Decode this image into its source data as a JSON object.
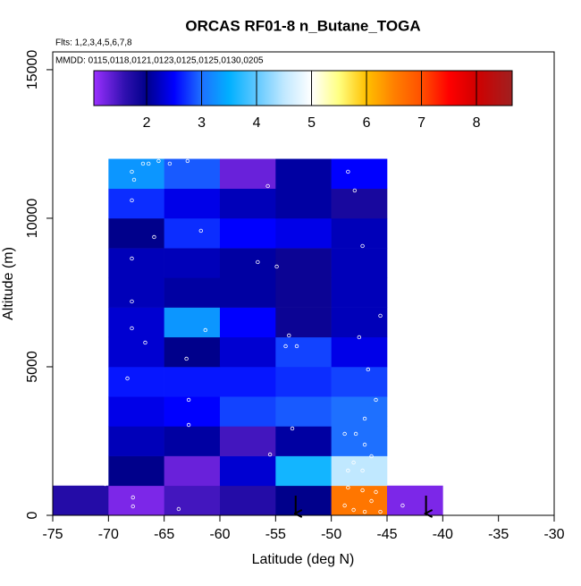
{
  "chart_data": {
    "type": "heatmap",
    "title": "ORCAS RF01-8 n_Butane_TOGA",
    "subtitle": "Flts: 1,2,3,4,5,6,7,8",
    "annotation": "MMDD: 0115,0118,0121,0123,0125,0125,0130,0205",
    "x_label": "Latitude (deg N)",
    "y_label": "Altitude (m)",
    "xlim": [
      -75,
      -30
    ],
    "xticks": [
      -75,
      -70,
      -65,
      -60,
      -55,
      -50,
      -45,
      -40,
      -35,
      -30
    ],
    "ylim": [
      0,
      15600
    ],
    "yticks": [
      0,
      5000,
      10000,
      15000
    ],
    "x_edges": [
      -75,
      -70,
      -65,
      -60,
      -55,
      -50,
      -45,
      -40
    ],
    "y_edges": [
      0,
      1000,
      2000,
      3000,
      4000,
      5000,
      6000,
      7000,
      8000,
      9000,
      10000,
      11000,
      12000
    ],
    "z": [
      [
        1.7,
        1.2,
        1.5,
        1.7,
        2.0,
        6.6,
        1.2
      ],
      [
        null,
        2.0,
        1.3,
        2.3,
        3.6,
        4.5,
        null
      ],
      [
        null,
        2.2,
        2.1,
        1.5,
        2.1,
        3.0,
        null
      ],
      [
        null,
        2.4,
        2.5,
        2.8,
        2.9,
        3.0,
        null
      ],
      [
        null,
        2.6,
        2.6,
        2.6,
        2.7,
        2.8,
        null
      ],
      [
        null,
        2.3,
        2.0,
        2.3,
        2.8,
        2.4,
        null
      ],
      [
        null,
        2.3,
        3.3,
        2.5,
        1.9,
        2.2,
        null
      ],
      [
        null,
        2.2,
        2.1,
        2.1,
        1.9,
        2.2,
        null
      ],
      [
        null,
        2.2,
        2.2,
        2.1,
        1.9,
        2.2,
        null
      ],
      [
        null,
        2.0,
        2.7,
        2.5,
        2.4,
        2.2,
        null
      ],
      [
        null,
        2.7,
        2.4,
        2.2,
        2.1,
        1.8,
        null
      ],
      [
        null,
        3.3,
        2.9,
        1.3,
        2.1,
        2.5,
        null
      ]
    ],
    "colorbar_lim": [
      1.04,
      8.65
    ],
    "colorbar_ticks": [
      2,
      3,
      4,
      5,
      6,
      7,
      8
    ],
    "colorscale": [
      [
        1.04,
        "#9b30ff"
      ],
      [
        1.6,
        "#3010b0"
      ],
      [
        2.0,
        "#00008b"
      ],
      [
        2.5,
        "#0000ff"
      ],
      [
        3.0,
        "#1e70ff"
      ],
      [
        3.5,
        "#00b0ff"
      ],
      [
        4.0,
        "#60c8ff"
      ],
      [
        4.5,
        "#c0e8ff"
      ],
      [
        5.0,
        "#ffffff"
      ],
      [
        5.5,
        "#ffff80"
      ],
      [
        6.0,
        "#ffc000"
      ],
      [
        6.5,
        "#ff8000"
      ],
      [
        7.0,
        "#ff5000"
      ],
      [
        7.5,
        "#ff0000"
      ],
      [
        8.0,
        "#d00000"
      ],
      [
        8.65,
        "#a02020"
      ]
    ],
    "points": {
      "lat": [
        -66.9,
        -66.4,
        -65.5,
        -64.5,
        -62.9,
        -67.9,
        -67.7,
        -67.9,
        -65.9,
        -67.9,
        -67.9,
        -67.9,
        -66.7,
        -68.3,
        -67.8,
        -67.8,
        -63.7,
        -62.8,
        -62.8,
        -61.3,
        -63.0,
        -61.7,
        -56.6,
        -54.9,
        -55.7,
        -53.8,
        -53.1,
        -54.1,
        -53.5,
        -55.5,
        -48.5,
        -47.9,
        -47.2,
        -45.6,
        -47.5,
        -46.7,
        -46.0,
        -47.0,
        -48.8,
        -47.8,
        -47.0,
        -48.0,
        -46.4,
        -48.5,
        -47.2,
        -48.5,
        -47.2,
        -46.0,
        -48.8,
        -48.0,
        -47.0,
        -45.6,
        -46.4,
        -43.6,
        -70.3
      ],
      "alt": [
        11837,
        11837,
        11928,
        11837,
        11928,
        11566,
        11295,
        10602,
        9367,
        8644,
        7199,
        6295,
        5813,
        4608,
        602,
        301,
        211,
        3886,
        3042,
        6235,
        5271,
        9578,
        8524,
        8373,
        11084,
        6054,
        5693,
        5693,
        2922,
        2048,
        11566,
        10934,
        9066,
        6717,
        5994,
        4910,
        3886,
        3253,
        2741,
        2741,
        2379,
        1777,
        1988,
        1506,
        1506,
        934,
        843,
        783,
        331,
        181,
        120,
        120,
        482,
        331,
        1054
      ]
    },
    "arrows": {
      "lat": [
        -53.2,
        -41.5
      ]
    }
  }
}
